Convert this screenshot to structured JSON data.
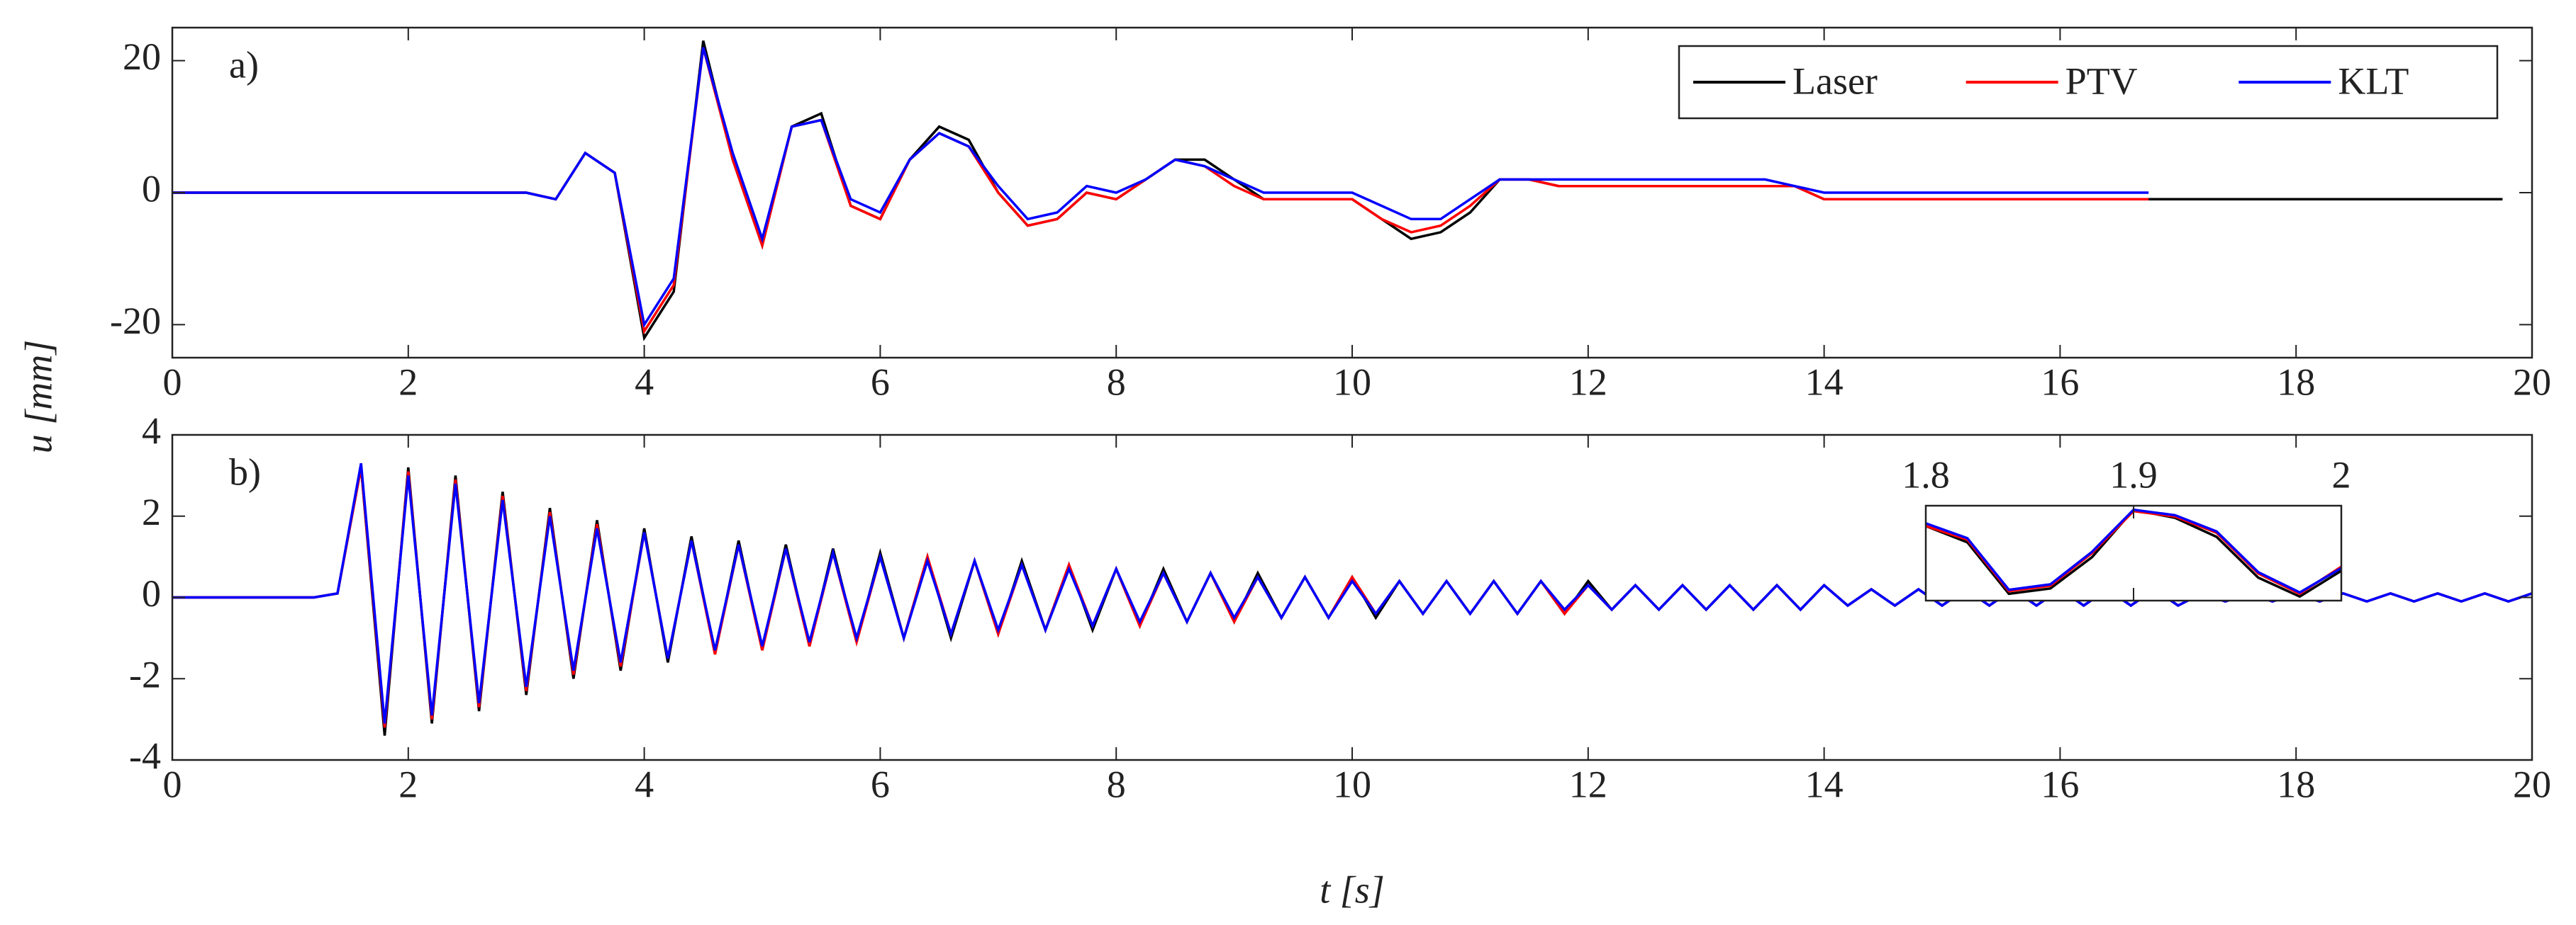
{
  "chart_data": [
    {
      "type": "line",
      "annotation": "a)",
      "ylabel": "u [mm]",
      "xlim": [
        0,
        20
      ],
      "ylim": [
        -25,
        25
      ],
      "xticks": [
        0,
        2,
        4,
        6,
        8,
        10,
        12,
        14,
        16,
        18,
        20
      ],
      "yticks": [
        -20,
        0,
        20
      ],
      "legend": "top-right",
      "x": [
        0,
        0.25,
        0.5,
        0.75,
        1,
        1.25,
        1.5,
        1.75,
        2,
        2.25,
        2.5,
        2.75,
        3,
        3.25,
        3.5,
        3.75,
        4,
        4.25,
        4.5,
        4.75,
        5,
        5.25,
        5.5,
        5.75,
        6,
        6.25,
        6.5,
        6.75,
        7,
        7.25,
        7.5,
        7.75,
        8,
        8.25,
        8.5,
        8.75,
        9,
        9.25,
        9.5,
        9.75,
        10,
        10.25,
        10.5,
        10.75,
        11,
        11.25,
        11.5,
        11.75,
        12,
        12.25,
        12.5,
        12.75,
        13,
        13.25,
        13.5,
        13.75,
        14,
        14.25,
        14.5,
        14.75,
        15,
        15.25,
        15.5,
        15.75,
        16,
        16.25,
        16.5,
        16.75,
        17,
        17.25,
        17.5,
        17.75,
        18,
        18.25,
        18.5,
        18.75,
        19,
        19.25,
        19.5,
        19.75
      ],
      "series": [
        {
          "name": "Laser",
          "color": "#000000",
          "values": [
            0,
            0,
            0,
            0,
            0,
            0,
            0,
            0,
            0,
            0,
            0,
            0,
            0,
            -1,
            6,
            3,
            -22,
            -15,
            23,
            5,
            -8,
            10,
            12,
            -2,
            -4,
            5,
            10,
            8,
            0,
            -5,
            -4,
            0,
            -1,
            2,
            5,
            5,
            2,
            -1,
            -1,
            -1,
            -1,
            -4,
            -7,
            -6,
            -3,
            2,
            2,
            1,
            1,
            1,
            1,
            1,
            1,
            1,
            1,
            1,
            -1,
            -1,
            -1,
            -1,
            -1,
            -1,
            -1,
            -1,
            -1,
            -1,
            -1,
            -1,
            -1,
            -1,
            -1,
            -1,
            -1,
            -1,
            -1,
            -1,
            -1,
            -1,
            -1,
            -1
          ]
        },
        {
          "name": "PTV",
          "color": "#ff0000",
          "values": [
            0,
            0,
            0,
            0,
            0,
            0,
            0,
            0,
            0,
            0,
            0,
            0,
            0,
            -1,
            6,
            3,
            -21,
            -14,
            22,
            5,
            -8,
            10,
            11,
            -2,
            -4,
            5,
            9,
            7,
            0,
            -5,
            -4,
            0,
            -1,
            2,
            5,
            4,
            1,
            -1,
            -1,
            -1,
            -1,
            -4,
            -6,
            -5,
            -2,
            2,
            2,
            1,
            1,
            1,
            1,
            1,
            1,
            1,
            1,
            1,
            -1,
            -1,
            -1,
            -1,
            -1,
            -1,
            -1,
            -1,
            -1,
            -1,
            -1,
            -1,
            null,
            null,
            null,
            null,
            null,
            null,
            null,
            null,
            null,
            null,
            null,
            null
          ]
        },
        {
          "name": "KLT",
          "color": "#0000ff",
          "values": [
            0,
            0,
            0,
            0,
            0,
            0,
            0,
            0,
            0,
            0,
            0,
            0,
            0,
            -1,
            6,
            3,
            -20,
            -13,
            22,
            6,
            -7,
            10,
            11,
            -1,
            -3,
            5,
            9,
            7,
            1,
            -4,
            -3,
            1,
            0,
            2,
            5,
            4,
            2,
            0,
            0,
            0,
            0,
            -2,
            -4,
            -4,
            -1,
            2,
            2,
            2,
            2,
            2,
            2,
            2,
            2,
            2,
            2,
            1,
            0,
            0,
            0,
            0,
            0,
            0,
            0,
            0,
            0,
            0,
            0,
            0,
            null,
            null,
            null,
            null,
            null,
            null,
            null,
            null,
            null,
            null,
            null,
            null
          ]
        }
      ]
    },
    {
      "type": "line",
      "annotation": "b)",
      "xlabel": "t [s]",
      "xlim": [
        0,
        20
      ],
      "ylim": [
        -4,
        4
      ],
      "xticks": [
        0,
        2,
        4,
        6,
        8,
        10,
        12,
        14,
        16,
        18,
        20
      ],
      "yticks": [
        -4,
        -2,
        0,
        2,
        4
      ],
      "x": [
        0,
        0.2,
        0.4,
        0.6,
        0.8,
        1,
        1.2,
        1.4,
        1.6,
        1.8,
        2,
        2.2,
        2.4,
        2.6,
        2.8,
        3,
        3.2,
        3.4,
        3.6,
        3.8,
        4,
        4.2,
        4.4,
        4.6,
        4.8,
        5,
        5.2,
        5.4,
        5.6,
        5.8,
        6,
        6.2,
        6.4,
        6.6,
        6.8,
        7,
        7.2,
        7.4,
        7.6,
        7.8,
        8,
        8.2,
        8.4,
        8.6,
        8.8,
        9,
        9.2,
        9.4,
        9.6,
        9.8,
        10,
        10.2,
        10.4,
        10.6,
        10.8,
        11,
        11.2,
        11.4,
        11.6,
        11.8,
        12,
        12.2,
        12.4,
        12.6,
        12.8,
        13,
        13.2,
        13.4,
        13.6,
        13.8,
        14,
        14.2,
        14.4,
        14.6,
        14.8,
        15,
        15.2,
        15.4,
        15.6,
        15.8,
        16,
        16.2,
        16.4,
        16.6,
        16.8,
        17,
        17.2,
        17.4,
        17.6,
        17.8,
        18,
        18.2,
        18.4,
        18.6,
        18.8,
        19,
        19.2,
        19.4,
        19.6,
        19.8,
        20
      ],
      "series": [
        {
          "color": "#000000",
          "values": [
            0,
            0,
            0,
            0,
            0,
            0,
            0,
            0.1,
            3.2,
            -3.4,
            3.2,
            -3.1,
            3.0,
            -2.8,
            2.6,
            -2.4,
            2.2,
            -2.0,
            1.9,
            -1.8,
            1.7,
            -1.6,
            1.5,
            -1.4,
            1.4,
            -1.3,
            1.3,
            -1.2,
            1.2,
            -1.1,
            1.1,
            -1.0,
            1.0,
            -1.0,
            0.9,
            -0.9,
            0.9,
            -0.8,
            0.8,
            -0.8,
            0.7,
            -0.7,
            0.7,
            -0.6,
            0.6,
            -0.6,
            0.6,
            -0.5,
            0.5,
            -0.5,
            0.5,
            -0.5,
            0.4,
            -0.4,
            0.4,
            -0.4,
            0.4,
            -0.4,
            0.4,
            -0.4,
            0.4,
            -0.3,
            0.3,
            -0.3,
            0.3,
            -0.3,
            0.3,
            -0.3,
            0.3,
            -0.3,
            0.3,
            -0.2,
            0.2,
            -0.2,
            0.2,
            -0.2,
            0.2,
            -0.2,
            0.2,
            -0.2,
            0.2,
            -0.2,
            0.2,
            -0.2,
            0.2,
            -0.2,
            0.1,
            -0.1,
            0.1,
            -0.1,
            0.1,
            -0.1,
            0.1,
            -0.1,
            0.1,
            -0.1,
            0.1,
            -0.1,
            0.1,
            -0.1,
            0.1
          ]
        },
        {
          "color": "#ff0000",
          "values": [
            0,
            0,
            0,
            0,
            0,
            0,
            0,
            0.1,
            3.2,
            -3.2,
            3.1,
            -3.0,
            2.9,
            -2.7,
            2.5,
            -2.3,
            2.1,
            -1.9,
            1.8,
            -1.7,
            1.6,
            -1.5,
            1.4,
            -1.4,
            1.3,
            -1.3,
            1.2,
            -1.2,
            1.1,
            -1.1,
            1.0,
            -1.0,
            1.0,
            -0.9,
            0.9,
            -0.9,
            0.8,
            -0.8,
            0.8,
            -0.7,
            0.7,
            -0.7,
            0.6,
            -0.6,
            0.6,
            -0.6,
            0.5,
            -0.5,
            0.5,
            -0.5,
            0.5,
            -0.4,
            0.4,
            -0.4,
            0.4,
            -0.4,
            0.4,
            -0.4,
            0.4,
            -0.4,
            0.3,
            -0.3,
            0.3,
            -0.3,
            0.3,
            -0.3,
            0.3,
            -0.3,
            0.3,
            -0.3,
            0.3,
            -0.2,
            0.2,
            -0.2,
            0.2,
            -0.2,
            0.2,
            -0.2,
            0.2,
            -0.2,
            0.2,
            -0.2,
            0.2,
            -0.2,
            0.2,
            -0.2,
            0.1,
            -0.1,
            0.1,
            -0.1,
            0.1,
            -0.1,
            0.1,
            -0.1,
            0.1,
            -0.1,
            0.1,
            -0.1,
            0.1,
            -0.1,
            0.1
          ]
        },
        {
          "color": "#0000ff",
          "values": [
            0,
            0,
            0,
            0,
            0,
            0,
            0,
            0.1,
            3.3,
            -3.1,
            3.0,
            -2.9,
            2.8,
            -2.6,
            2.4,
            -2.2,
            2.0,
            -1.8,
            1.7,
            -1.6,
            1.6,
            -1.5,
            1.4,
            -1.3,
            1.3,
            -1.2,
            1.2,
            -1.1,
            1.1,
            -1.0,
            1.0,
            -1.0,
            0.9,
            -0.9,
            0.9,
            -0.8,
            0.8,
            -0.8,
            0.7,
            -0.7,
            0.7,
            -0.6,
            0.6,
            -0.6,
            0.6,
            -0.5,
            0.5,
            -0.5,
            0.5,
            -0.5,
            0.4,
            -0.4,
            0.4,
            -0.4,
            0.4,
            -0.4,
            0.4,
            -0.4,
            0.4,
            -0.3,
            0.3,
            -0.3,
            0.3,
            -0.3,
            0.3,
            -0.3,
            0.3,
            -0.3,
            0.3,
            -0.3,
            0.3,
            -0.2,
            0.2,
            -0.2,
            0.2,
            -0.2,
            0.2,
            -0.2,
            0.2,
            -0.2,
            0.2,
            -0.2,
            0.2,
            -0.2,
            0.2,
            -0.2,
            0.1,
            -0.1,
            0.1,
            -0.1,
            0.1,
            -0.1,
            0.1,
            -0.1,
            0.1,
            -0.1,
            0.1,
            -0.1,
            0.1,
            -0.1,
            0.1
          ]
        }
      ]
    },
    {
      "type": "line",
      "xtick_position": "top",
      "xlim": [
        1.8,
        2
      ],
      "ylim": [
        -3.5,
        3.5
      ],
      "xticks": [
        1.8,
        1.9,
        2
      ],
      "x": [
        1.8,
        1.82,
        1.84,
        1.86,
        1.88,
        1.9,
        1.92,
        1.94,
        1.96,
        1.98,
        2
      ],
      "series": [
        {
          "color": "#000000",
          "values": [
            2.0,
            0.8,
            -3.0,
            -2.6,
            -0.3,
            3.2,
            2.6,
            1.2,
            -1.8,
            -3.2,
            -1.3
          ]
        },
        {
          "color": "#ff0000",
          "values": [
            2.0,
            1.0,
            -2.8,
            -2.4,
            0,
            3.1,
            2.7,
            1.5,
            -1.5,
            -3.0,
            -1.0
          ]
        },
        {
          "color": "#0000ff",
          "values": [
            2.2,
            1.1,
            -2.7,
            -2.3,
            0.1,
            3.2,
            2.8,
            1.6,
            -1.4,
            -2.9,
            -1.1
          ]
        }
      ]
    }
  ]
}
